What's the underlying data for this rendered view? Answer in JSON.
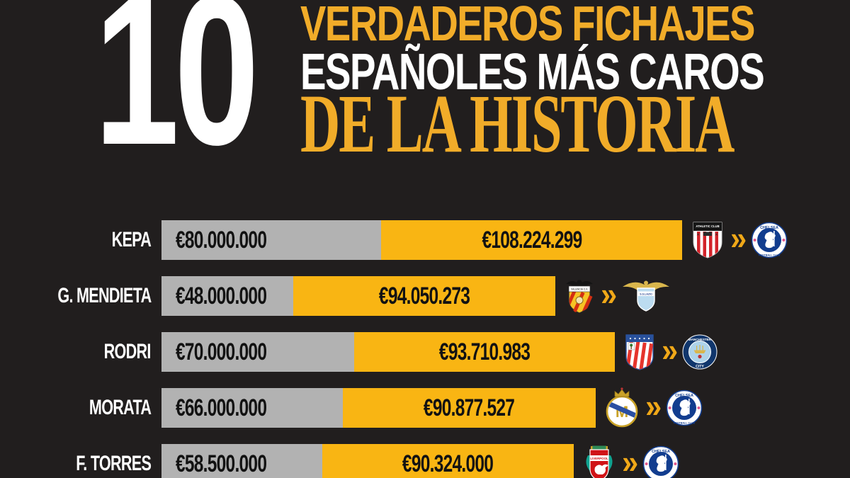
{
  "title": {
    "number": "10",
    "line1": "VERDADEROS FICHAJES",
    "line2": "ESPAÑOLES MÁS CAROS",
    "line3": "DE LA HISTORIA",
    "accent_color": "#F1AC29",
    "number_color": "#FFFFFF"
  },
  "arrow": {
    "glyph": "»",
    "color": "#F0A818"
  },
  "colors": {
    "background": "#211E1E",
    "bar_original": "#B2B2B2",
    "bar_adjusted": "#F9B513",
    "bar_text": "#121212",
    "player_text": "#FFFFFF"
  },
  "chart_data": {
    "type": "bar",
    "orientation": "horizontal",
    "title": "10 VERDADEROS FICHAJES ESPAÑOLES MÁS CAROS DE LA HISTORIA",
    "categories": [
      "KEPA",
      "G. MENDIETA",
      "RODRI",
      "MORATA",
      "F. TORRES"
    ],
    "series": [
      {
        "name": "fee-gray-bar",
        "color": "#B2B2B2",
        "values": [
          80000000,
          48000000,
          70000000,
          66000000,
          58500000
        ]
      },
      {
        "name": "fee-yellow-bar",
        "color": "#F9B513",
        "values": [
          108224299,
          94050273,
          93710983,
          90877527,
          90324000
        ]
      }
    ],
    "rows": [
      {
        "player": "KEPA",
        "fee_eur": 80000000,
        "fee_label": "€80.000.000",
        "adjusted_eur": 108224299,
        "adjusted_label": "€108.224.299",
        "from_club": "Athletic Club",
        "to_club": "Chelsea"
      },
      {
        "player": "G. MENDIETA",
        "fee_eur": 48000000,
        "fee_label": "€48.000.000",
        "adjusted_eur": 94050273,
        "adjusted_label": "€94.050.273",
        "from_club": "Valencia",
        "to_club": "Lazio"
      },
      {
        "player": "RODRI",
        "fee_eur": 70000000,
        "fee_label": "€70.000.000",
        "adjusted_eur": 93710983,
        "adjusted_label": "€93.710.983",
        "from_club": "Atlético de Madrid",
        "to_club": "Manchester City"
      },
      {
        "player": "MORATA",
        "fee_eur": 66000000,
        "fee_label": "€66.000.000",
        "adjusted_eur": 90877527,
        "adjusted_label": "€90.877.527",
        "from_club": "Real Madrid",
        "to_club": "Chelsea"
      },
      {
        "player": "F. TORRES",
        "fee_eur": 58500000,
        "fee_label": "€58.500.000",
        "adjusted_eur": 90324000,
        "adjusted_label": "€90.324.000",
        "from_club": "Liverpool",
        "to_club": "Chelsea"
      }
    ]
  },
  "badges": {
    "athletic": {
      "chief_text": "ATHLETIC CLUB"
    },
    "chelsea": {
      "top": "CHELSEA",
      "bottom": "FOOTBALL CLUB"
    },
    "valencia": {
      "band": "VALENCIA C.F."
    },
    "lazio": {
      "band": "S.S.LAZIO"
    },
    "mancity": {
      "top": "MANCHESTER",
      "bottom": "CITY"
    },
    "liverpool": {
      "band": "LIVERPOOL"
    }
  }
}
